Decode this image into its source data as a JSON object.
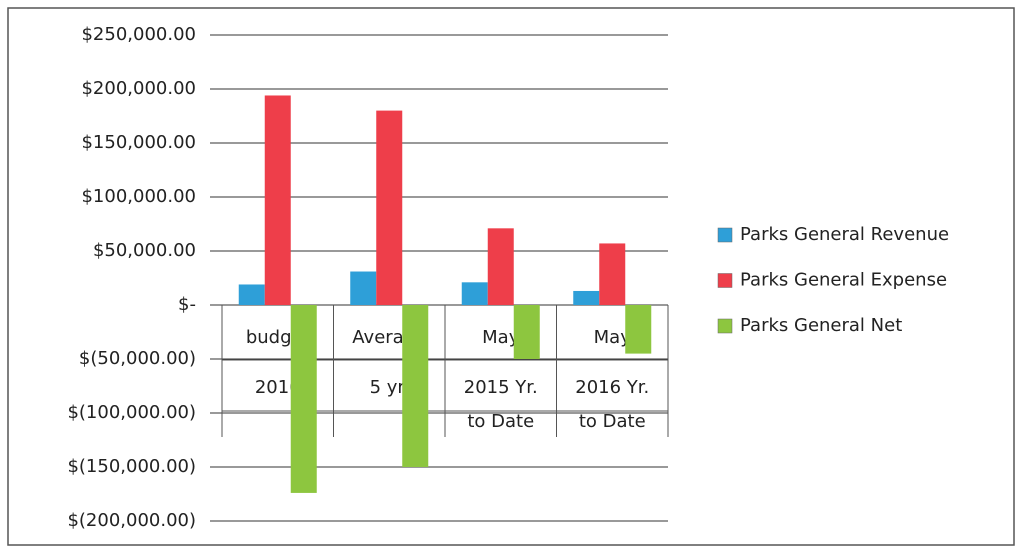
{
  "chart_data": {
    "type": "bar",
    "categories": [
      [
        "budget",
        "2016"
      ],
      [
        "Average",
        "5 yr."
      ],
      [
        "May",
        "2015 Yr.",
        "to Date"
      ],
      [
        "May",
        "2016 Yr.",
        "to Date"
      ]
    ],
    "series": [
      {
        "name": "Parks General Revenue",
        "color": "#2e9fd8",
        "values": [
          19000,
          31000,
          21000,
          13000
        ]
      },
      {
        "name": "Parks General Expense",
        "color": "#ee3e4a",
        "values": [
          194000,
          180000,
          71000,
          57000
        ]
      },
      {
        "name": "Parks General Net",
        "color": "#8dc63f",
        "values": [
          -174000,
          -150000,
          -50000,
          -45000
        ]
      }
    ],
    "ylim": [
      -200000,
      250000
    ],
    "yticks": [
      {
        "value": 250000,
        "label": "$250,000.00"
      },
      {
        "value": 200000,
        "label": "$200,000.00"
      },
      {
        "value": 150000,
        "label": "$150,000.00"
      },
      {
        "value": 100000,
        "label": "$100,000.00"
      },
      {
        "value": 50000,
        "label": "$50,000.00"
      },
      {
        "value": 0,
        "label": "$-"
      },
      {
        "value": -50000,
        "label": "$(50,000.00)"
      },
      {
        "value": -100000,
        "label": "$(100,000.00)"
      },
      {
        "value": -150000,
        "label": "$(150,000.00)"
      },
      {
        "value": -200000,
        "label": "$(200,000.00)"
      }
    ],
    "grid": true,
    "legend": "right"
  }
}
